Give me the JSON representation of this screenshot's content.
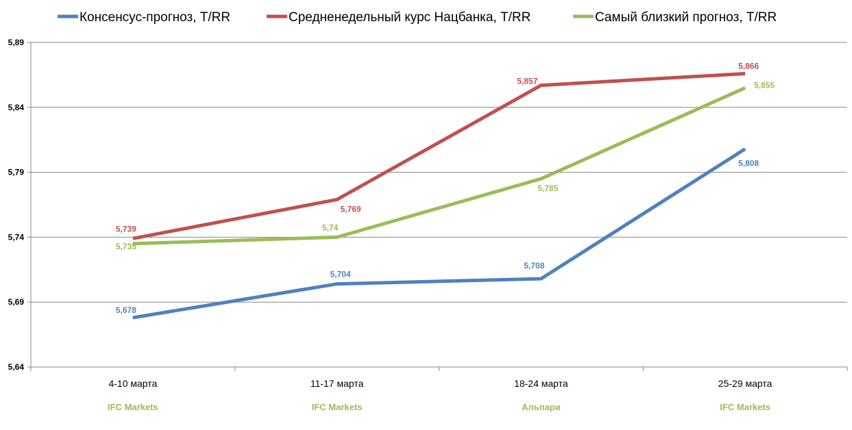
{
  "chart_data": {
    "type": "line",
    "title": "",
    "xlabel": "",
    "ylabel": "",
    "ylim": [
      5.64,
      5.89
    ],
    "yticks": [
      "5,89",
      "5,84",
      "5,79",
      "5,74",
      "5,69",
      "5,64"
    ],
    "ytick_values": [
      5.89,
      5.84,
      5.79,
      5.74,
      5.69,
      5.64
    ],
    "categories": [
      "4-10 марта",
      "11-17 марта",
      "18-24 марта",
      "25-29 марта"
    ],
    "sub_labels": [
      "IFC Markets",
      "IFC Markets",
      "Альпари",
      "IFC Markets"
    ],
    "sub_label_color": "#9BBB59",
    "grid": true,
    "legend_position": "top",
    "series": [
      {
        "name": "Консенсус-прогноз, T/RR",
        "color": "#4F81BD",
        "values": [
          5.678,
          5.704,
          5.708,
          5.808
        ],
        "labels": [
          "5,678",
          "5,704",
          "5,708",
          "5,808"
        ]
      },
      {
        "name": "Средненедельный курс Нацбанка, T/RR",
        "color": "#C0504D",
        "values": [
          5.739,
          5.769,
          5.857,
          5.866
        ],
        "labels": [
          "5,739",
          "5,769",
          "5,857",
          "5,866"
        ]
      },
      {
        "name": "Самый близкий прогноз, T/RR",
        "color": "#9BBB59",
        "values": [
          5.735,
          5.74,
          5.785,
          5.855
        ],
        "labels": [
          "5,735",
          "5,74",
          "5,785",
          "5,855"
        ]
      }
    ]
  }
}
